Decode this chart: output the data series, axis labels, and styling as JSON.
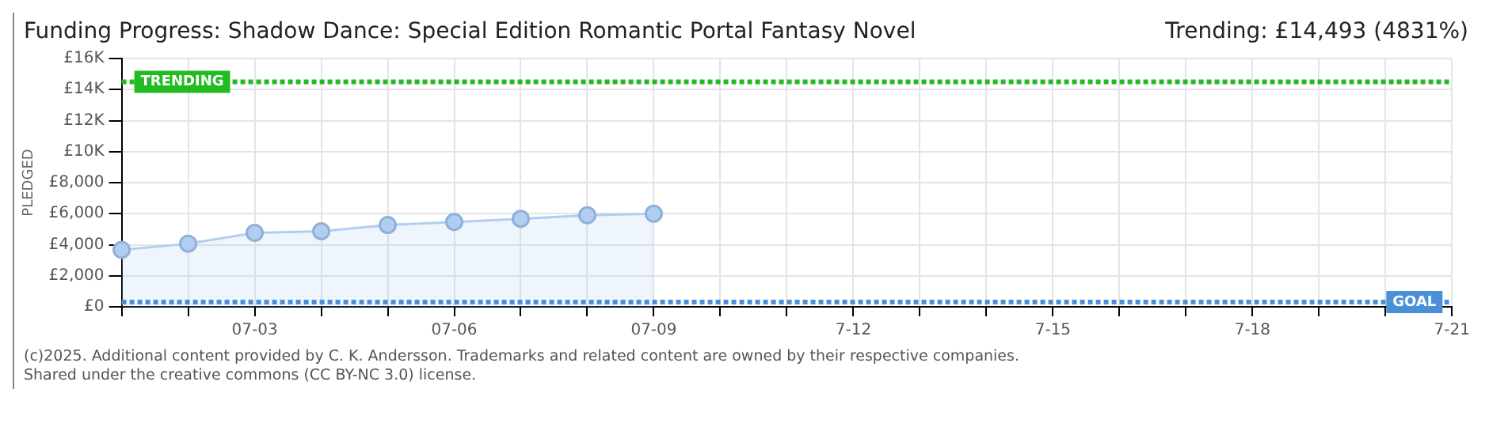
{
  "chart_data": {
    "type": "area",
    "title": "Funding Progress: Shadow Dance: Special Edition Romantic Portal Fantasy Novel",
    "subtitle": "Trending:  £14,493 (4831%)",
    "ylabel": "PLEDGED",
    "categories": [
      null,
      null,
      "07-03",
      null,
      null,
      "07-06",
      null,
      null,
      "07-09",
      null,
      null,
      "7-12",
      null,
      null,
      "7-15",
      null,
      null,
      "7-18",
      null,
      null,
      "7-21"
    ],
    "series": [
      {
        "color": "#b0cff0",
        "values": [
          3670,
          4070,
          4770,
          4870,
          5270,
          5470,
          5670,
          5900,
          6000,
          null,
          null,
          null,
          null,
          null,
          null,
          null,
          null,
          null,
          null,
          null,
          null
        ]
      }
    ],
    "ylim": [
      0,
      16000
    ],
    "yticks": [
      {
        "value": 0,
        "label": "£0"
      },
      {
        "value": 2000,
        "label": "£2,000"
      },
      {
        "value": 4000,
        "label": "£4,000"
      },
      {
        "value": 6000,
        "label": "£6,000"
      },
      {
        "value": 8000,
        "label": "£8,000"
      },
      {
        "value": 10000,
        "label": "£10K"
      },
      {
        "value": 12000,
        "label": "£12K"
      },
      {
        "value": 14000,
        "label": "£14K"
      },
      {
        "value": 16000,
        "label": "£16K"
      }
    ],
    "ref_lines": [
      {
        "axis": "y",
        "value": 14493,
        "label": "TRENDING",
        "color": "#22bb22",
        "line_style": "dotted"
      },
      {
        "axis": "y",
        "value": 300,
        "label": "GOAL",
        "color": "#4a90d9",
        "line_style": "dotted"
      }
    ],
    "grid": true,
    "legend": false,
    "marker": "circle",
    "annotations": [
      "(c)2025. Additional content provided by C. K. Andersson. Trademarks and related content are owned by their respective companies.",
      "Shared under the creative commons (CC BY-NC 3.0) license."
    ]
  }
}
